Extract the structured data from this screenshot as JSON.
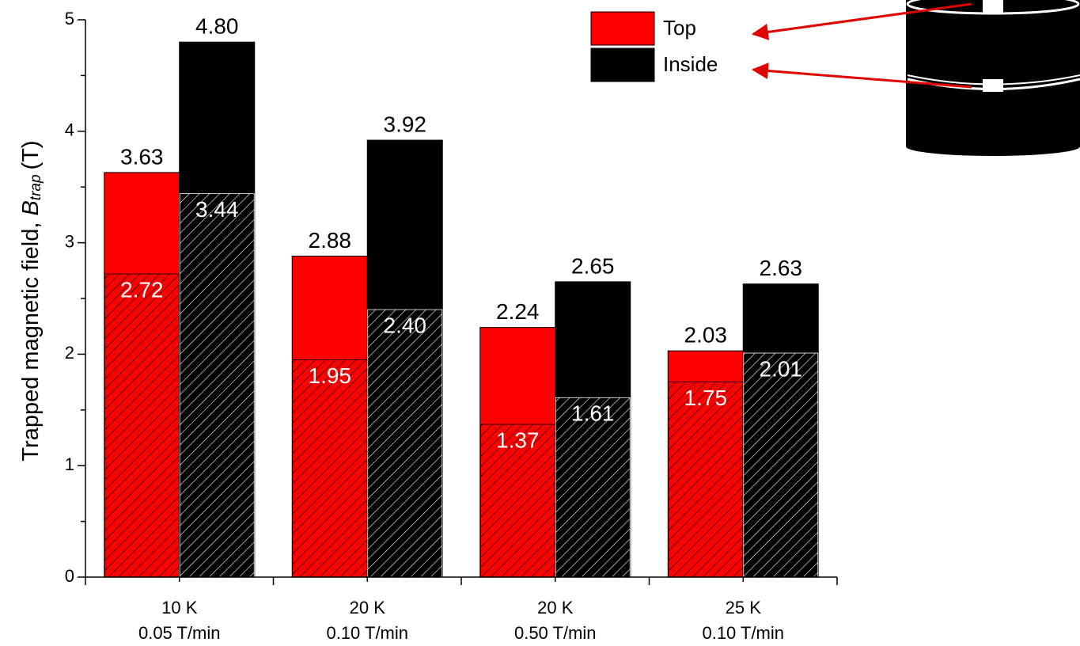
{
  "chart_data": {
    "type": "bar",
    "categories": [
      [
        "10 K",
        "0.05 T/min"
      ],
      [
        "20 K",
        "0.10 T/min"
      ],
      [
        "20 K",
        "0.50 T/min"
      ],
      [
        "25 K",
        "0.10 T/min"
      ]
    ],
    "y_label": {
      "text": "Trapped  magnetic field, ",
      "symbol": "B",
      "subscript": "trap",
      "unit": "(T)"
    },
    "series": [
      {
        "name": "Top",
        "color": "#ff0000",
        "values": [
          3.63,
          2.88,
          2.24,
          2.03
        ],
        "value_labels": [
          "3.63",
          "2.88",
          "2.24",
          "2.03"
        ],
        "hatched_values": [
          2.72,
          1.95,
          1.37,
          1.75
        ],
        "hatched_value_labels": [
          "2.72",
          "1.95",
          "1.37",
          "1.75"
        ]
      },
      {
        "name": "Inside",
        "color": "#000000",
        "values": [
          4.8,
          3.92,
          2.65,
          2.63
        ],
        "value_labels": [
          "4.80",
          "3.92",
          "2.65",
          "2.63"
        ],
        "hatched_values": [
          3.44,
          2.4,
          1.61,
          2.01
        ],
        "hatched_value_labels": [
          "3.44",
          "2.40",
          "1.61",
          "2.01"
        ]
      }
    ],
    "ylim": [
      0,
      5
    ],
    "yticks": [
      0,
      1,
      2,
      3,
      4,
      5
    ],
    "yminorticks": [
      0.5,
      1.5,
      2.5,
      3.5,
      4.5
    ],
    "legend": "upper right"
  }
}
